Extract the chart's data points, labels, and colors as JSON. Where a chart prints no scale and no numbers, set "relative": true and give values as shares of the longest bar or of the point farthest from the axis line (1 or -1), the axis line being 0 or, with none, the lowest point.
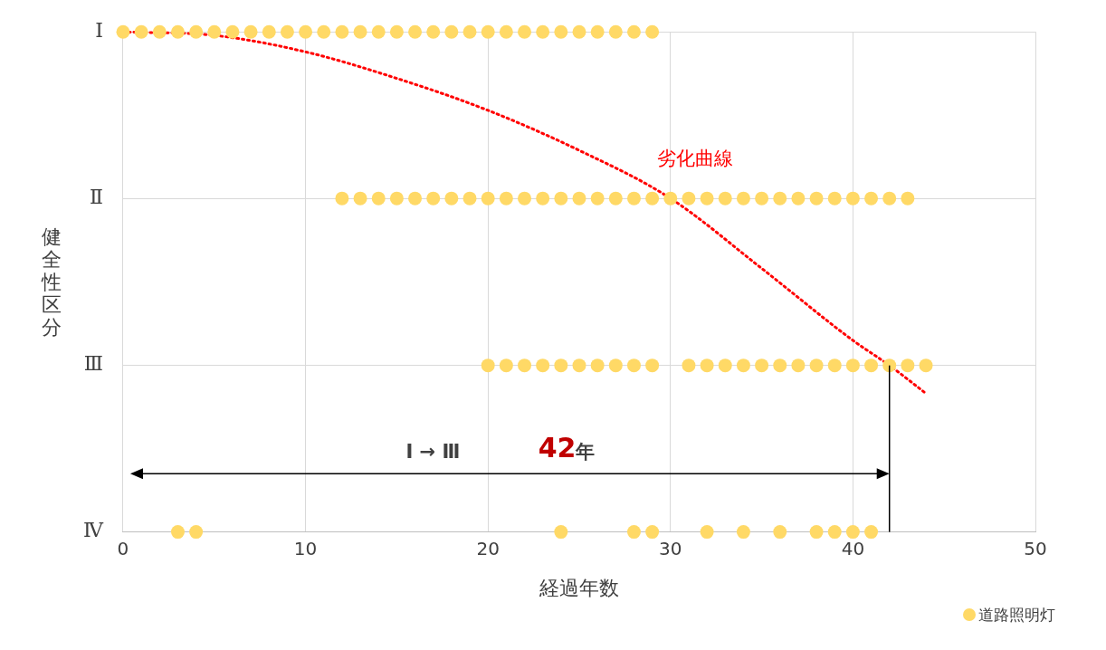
{
  "chart_data": {
    "type": "scatter",
    "xlabel": "経過年数",
    "ylabel": "健全性区分",
    "relative": true,
    "xlim": [
      0,
      50
    ],
    "xticks": [
      0,
      10,
      20,
      30,
      40,
      50
    ],
    "y_categories": [
      "Ⅰ",
      "Ⅱ",
      "Ⅲ",
      "Ⅳ"
    ],
    "grid": true,
    "legend": "bottom right",
    "marker": "circle",
    "series": [
      {
        "name": "道路照明灯",
        "color": "#ffd966",
        "x": [
          0,
          1,
          2,
          3,
          4,
          5,
          6,
          7,
          8,
          9,
          10,
          11,
          12,
          13,
          14,
          15,
          16,
          17,
          18,
          19,
          20,
          21,
          22,
          23,
          24,
          25,
          26,
          27,
          28,
          29,
          12,
          13,
          14,
          15,
          16,
          17,
          18,
          19,
          20,
          21,
          22,
          23,
          24,
          25,
          26,
          27,
          28,
          29,
          30,
          31,
          32,
          33,
          34,
          35,
          36,
          37,
          38,
          39,
          40,
          41,
          42,
          43,
          20,
          21,
          22,
          23,
          24,
          25,
          26,
          27,
          28,
          29,
          31,
          32,
          33,
          34,
          35,
          36,
          37,
          38,
          39,
          40,
          41,
          42,
          43,
          44,
          3,
          4,
          24,
          28,
          29,
          32,
          34,
          36,
          38,
          39,
          40,
          41
        ],
        "values": [
          1,
          1,
          1,
          1,
          1,
          1,
          1,
          1,
          1,
          1,
          1,
          1,
          1,
          1,
          1,
          1,
          1,
          1,
          1,
          1,
          1,
          1,
          1,
          1,
          1,
          1,
          1,
          1,
          1,
          1,
          0.667,
          0.667,
          0.667,
          0.667,
          0.667,
          0.667,
          0.667,
          0.667,
          0.667,
          0.667,
          0.667,
          0.667,
          0.667,
          0.667,
          0.667,
          0.667,
          0.667,
          0.667,
          0.667,
          0.667,
          0.667,
          0.667,
          0.667,
          0.667,
          0.667,
          0.667,
          0.667,
          0.667,
          0.667,
          0.667,
          0.667,
          0.667,
          0.333,
          0.333,
          0.333,
          0.333,
          0.333,
          0.333,
          0.333,
          0.333,
          0.333,
          0.333,
          0.333,
          0.333,
          0.333,
          0.333,
          0.333,
          0.333,
          0.333,
          0.333,
          0.333,
          0.333,
          0.333,
          0.333,
          0.333,
          0.333,
          0,
          0,
          0,
          0,
          0,
          0,
          0,
          0,
          0,
          0,
          0,
          0
        ]
      },
      {
        "type": "line",
        "color": "#ff0000",
        "line_style": "dotted",
        "marker": "none",
        "x": [
          0,
          5,
          10,
          15,
          20,
          25,
          30,
          35,
          40,
          42,
          44
        ],
        "values": [
          1,
          0.993,
          0.96,
          0.907,
          0.843,
          0.763,
          0.667,
          0.527,
          0.383,
          0.333,
          0.277
        ]
      }
    ],
    "ref_lines": [
      {
        "axis": "x",
        "value": 42,
        "color": "#000000"
      }
    ],
    "annotations": [
      "劣化曲線",
      "Ⅰ → Ⅲ",
      "42年"
    ]
  }
}
